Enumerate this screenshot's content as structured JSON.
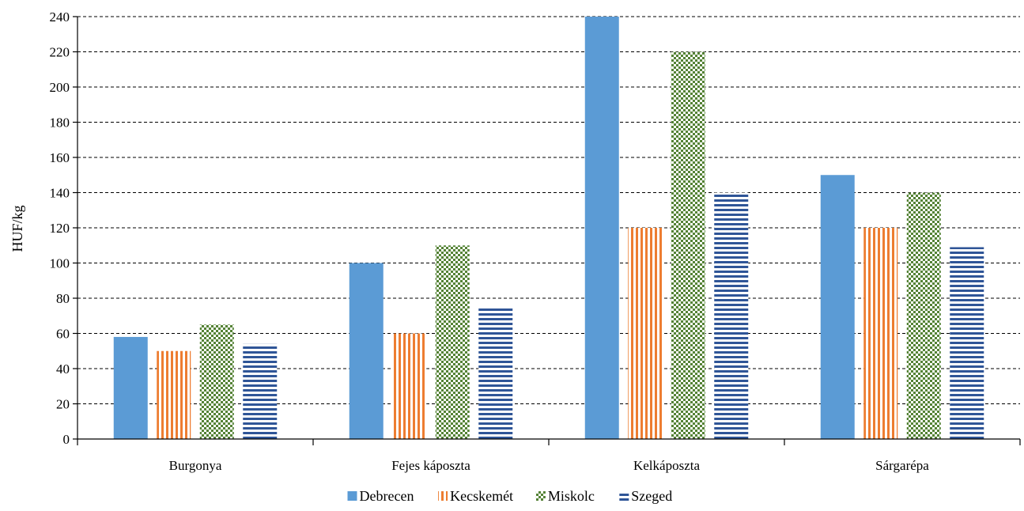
{
  "chart_data": {
    "type": "bar",
    "title": "",
    "xlabel": "",
    "ylabel": "HUF/kg",
    "ylim": [
      0,
      240
    ],
    "ytick_step": 20,
    "grid": true,
    "legend_position": "bottom",
    "categories": [
      "Burgonya",
      "Fejes káposzta",
      "Kelkáposzta",
      "Sárgarépa"
    ],
    "series": [
      {
        "name": "Debrecen",
        "values": [
          58,
          100,
          240,
          150
        ],
        "color": "#5b9bd5",
        "pattern": "solid"
      },
      {
        "name": "Kecskemét",
        "values": [
          50,
          60,
          120,
          120
        ],
        "color": "#ed7d31",
        "pattern": "vertical-stripes"
      },
      {
        "name": "Miskolc",
        "values": [
          65,
          110,
          220,
          140
        ],
        "color": "#548235",
        "pattern": "checkerboard"
      },
      {
        "name": "Szeged",
        "values": [
          54,
          75,
          140,
          109
        ],
        "color": "#2f5597",
        "pattern": "horizontal-stripes"
      }
    ]
  }
}
